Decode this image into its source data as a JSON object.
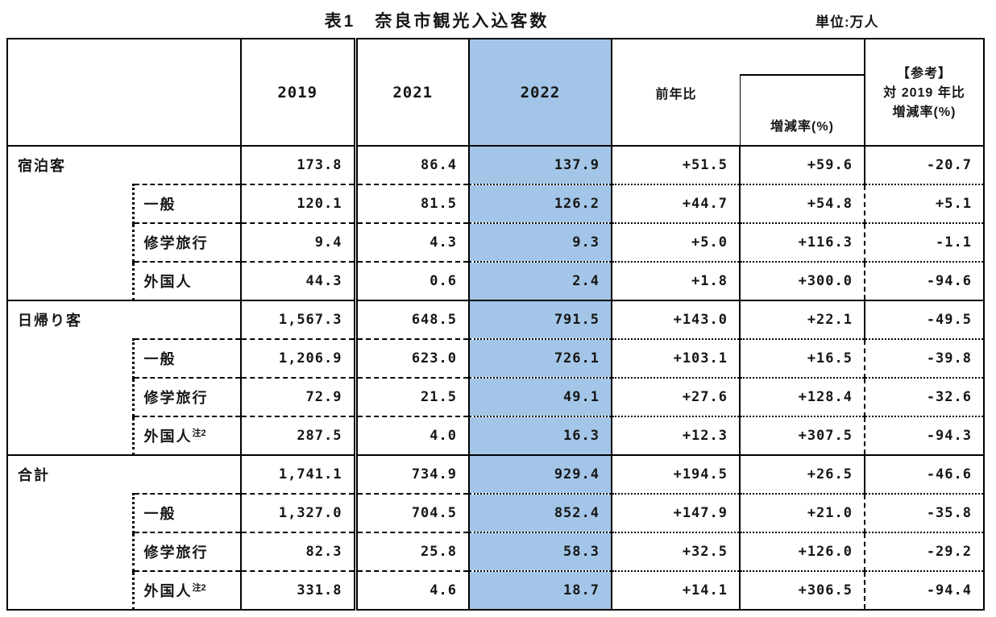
{
  "title": "表1　奈良市観光入込客数",
  "unit_label": "単位:万人",
  "highlight_color": "#a3c6e8",
  "table": {
    "headers": {
      "y2019": "2019",
      "y2021": "2021",
      "y2022": "2022",
      "yoy": "前年比",
      "rate": "増減率(%)",
      "ref1": "【参考】",
      "ref2": "対 2019 年比",
      "ref3": "増減率(%)"
    },
    "rows": [
      {
        "label": "宿泊客",
        "sup": "",
        "type": "main",
        "v2019": "173.8",
        "v2021": "86.4",
        "v2022": "137.9",
        "yoy": "+51.5",
        "rate": "+59.6",
        "ref": "-20.7"
      },
      {
        "label": "一般",
        "sup": "",
        "type": "sub",
        "v2019": "120.1",
        "v2021": "81.5",
        "v2022": "126.2",
        "yoy": "+44.7",
        "rate": "+54.8",
        "ref": "+5.1"
      },
      {
        "label": "修学旅行",
        "sup": "",
        "type": "sub",
        "v2019": "9.4",
        "v2021": "4.3",
        "v2022": "9.3",
        "yoy": "+5.0",
        "rate": "+116.3",
        "ref": "-1.1"
      },
      {
        "label": "外国人",
        "sup": "",
        "type": "sub",
        "v2019": "44.3",
        "v2021": "0.6",
        "v2022": "2.4",
        "yoy": "+1.8",
        "rate": "+300.0",
        "ref": "-94.6"
      },
      {
        "label": "日帰り客",
        "sup": "",
        "type": "main",
        "v2019": "1,567.3",
        "v2021": "648.5",
        "v2022": "791.5",
        "yoy": "+143.0",
        "rate": "+22.1",
        "ref": "-49.5"
      },
      {
        "label": "一般",
        "sup": "",
        "type": "sub",
        "v2019": "1,206.9",
        "v2021": "623.0",
        "v2022": "726.1",
        "yoy": "+103.1",
        "rate": "+16.5",
        "ref": "-39.8"
      },
      {
        "label": "修学旅行",
        "sup": "",
        "type": "sub",
        "v2019": "72.9",
        "v2021": "21.5",
        "v2022": "49.1",
        "yoy": "+27.6",
        "rate": "+128.4",
        "ref": "-32.6"
      },
      {
        "label": "外国人",
        "sup": "注2",
        "type": "sub",
        "v2019": "287.5",
        "v2021": "4.0",
        "v2022": "16.3",
        "yoy": "+12.3",
        "rate": "+307.5",
        "ref": "-94.3"
      },
      {
        "label": "合計",
        "sup": "",
        "type": "main",
        "v2019": "1,741.1",
        "v2021": "734.9",
        "v2022": "929.4",
        "yoy": "+194.5",
        "rate": "+26.5",
        "ref": "-46.6"
      },
      {
        "label": "一般",
        "sup": "",
        "type": "sub",
        "v2019": "1,327.0",
        "v2021": "704.5",
        "v2022": "852.4",
        "yoy": "+147.9",
        "rate": "+21.0",
        "ref": "-35.8"
      },
      {
        "label": "修学旅行",
        "sup": "",
        "type": "sub",
        "v2019": "82.3",
        "v2021": "25.8",
        "v2022": "58.3",
        "yoy": "+32.5",
        "rate": "+126.0",
        "ref": "-29.2"
      },
      {
        "label": "外国人",
        "sup": "注2",
        "type": "sub",
        "v2019": "331.8",
        "v2021": "4.6",
        "v2022": "18.7",
        "yoy": "+14.1",
        "rate": "+306.5",
        "ref": "-94.4"
      }
    ]
  }
}
